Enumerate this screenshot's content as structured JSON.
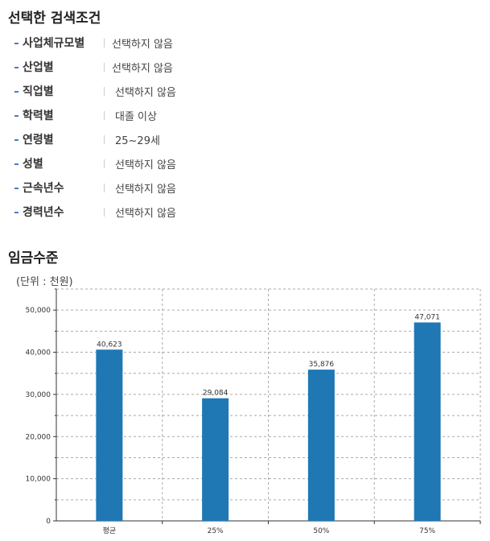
{
  "conditions": {
    "title": "선택한 검색조건",
    "items": [
      {
        "label": "사업체규모별",
        "value": "선택하지 않음"
      },
      {
        "label": "산업별",
        "value": "선택하지 않음"
      },
      {
        "label": "직업별",
        "value": "선택하지 않음"
      },
      {
        "label": "학력별",
        "value": "대졸 이상"
      },
      {
        "label": "연령별",
        "value": "25~29세"
      },
      {
        "label": "성별",
        "value": "선택하지 않음"
      },
      {
        "label": "근속년수",
        "value": "선택하지 않음"
      },
      {
        "label": "경력년수",
        "value": "선택하지 않음"
      }
    ]
  },
  "wage": {
    "title": "임금수준",
    "unit": "(단위 : 천원)"
  },
  "chart_data": {
    "type": "bar",
    "categories": [
      "평균",
      "25%",
      "50%",
      "75%"
    ],
    "values": [
      40623,
      29084,
      35876,
      47071
    ],
    "data_labels": [
      "40,623",
      "29,084",
      "35,876",
      "47,071"
    ],
    "ylim": [
      0,
      55000
    ],
    "yticks": [
      0,
      10000,
      20000,
      30000,
      40000,
      50000
    ],
    "ytick_labels": [
      "0",
      "10,000",
      "20,000",
      "30,000",
      "40,000",
      "50,000"
    ],
    "bar_color": "#1f77b4",
    "grid": true,
    "title": "",
    "xlabel": "",
    "ylabel": ""
  }
}
